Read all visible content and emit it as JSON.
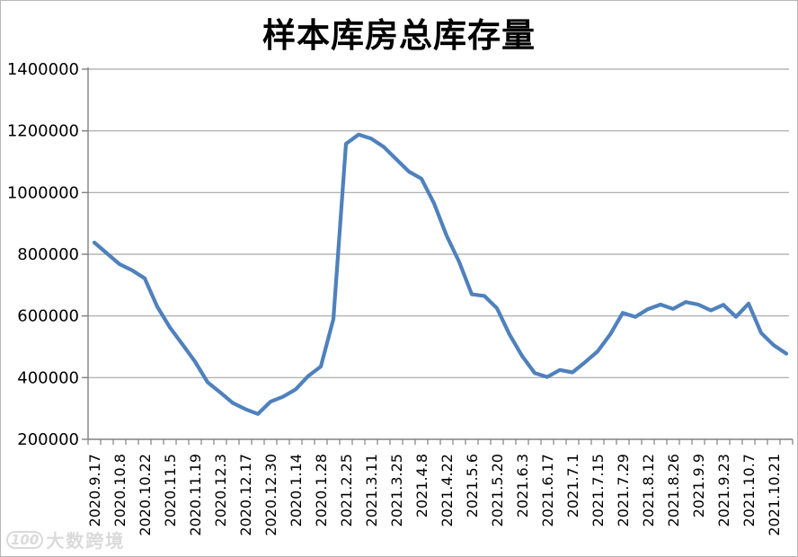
{
  "chart_data": {
    "type": "line",
    "title": "样本库房总库存量",
    "xlabel": "",
    "ylabel": "",
    "ylim": [
      200000,
      1400000
    ],
    "ytick_step": 200000,
    "y_tick_labels": [
      "200000",
      "400000",
      "600000",
      "800000",
      "1000000",
      "1200000",
      "1400000"
    ],
    "x_labels": [
      "2020.9.17",
      "2020.10.8",
      "2020.10.22",
      "2020.11.5",
      "2020.11.19",
      "2020.12.3",
      "2020.12.17",
      "2020.12.30",
      "2020.1.14",
      "2020.1.28",
      "2021.2.25",
      "2021.3.11",
      "2021.3.25",
      "2021.4.8",
      "2021.4.22",
      "2021.5.6",
      "2021.5.20",
      "2021.6.3",
      "2021.6.17",
      "2021.7.1",
      "2021.7.15",
      "2021.7.29",
      "2021.8.12",
      "2021.8.26",
      "2021.9.9",
      "2021.9.23",
      "2021.10.7",
      "2021.10.21"
    ],
    "points_per_label": 2,
    "values": [
      838000,
      803000,
      768000,
      748000,
      722000,
      630000,
      563000,
      508000,
      452000,
      385000,
      352000,
      318000,
      298000,
      282000,
      322000,
      338000,
      362000,
      405000,
      436000,
      590000,
      1158000,
      1188000,
      1175000,
      1148000,
      1108000,
      1068000,
      1045000,
      965000,
      860000,
      775000,
      670000,
      665000,
      625000,
      540000,
      470000,
      415000,
      402000,
      425000,
      417000,
      450000,
      485000,
      540000,
      610000,
      597000,
      622000,
      637000,
      623000,
      645000,
      637000,
      618000,
      636000,
      597000,
      640000,
      545000,
      505000,
      478000
    ],
    "grid": true,
    "legend_position": "none",
    "line_color": "#4F81BD",
    "grid_color": "#A6A6A6",
    "axis_color": "#808080",
    "text_color": "#000000"
  },
  "watermark": {
    "logo_text": "100",
    "text": "大数跨境"
  }
}
